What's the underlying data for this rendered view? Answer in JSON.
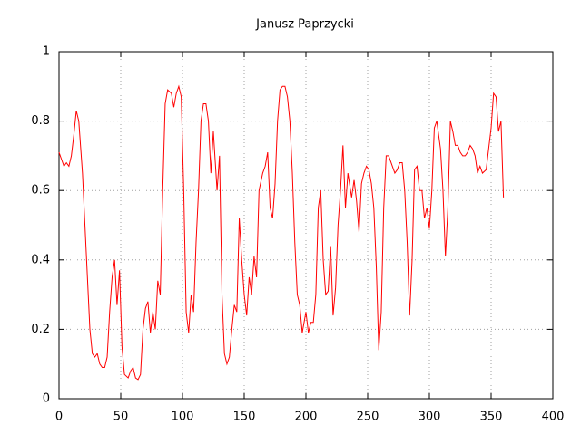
{
  "chart_data": {
    "type": "line",
    "title": "Janusz Paprzycki",
    "x": [
      0,
      2,
      4,
      6,
      8,
      10,
      12,
      14,
      16,
      19,
      21,
      23,
      25,
      27,
      29,
      31,
      33,
      35,
      37,
      39,
      41,
      43,
      45,
      47,
      49,
      51,
      53,
      56,
      58,
      60,
      62,
      64,
      66,
      68,
      70,
      72,
      74,
      76,
      78,
      80,
      82,
      84,
      86,
      88,
      91,
      93,
      95,
      97,
      99,
      101,
      103,
      105,
      107,
      109,
      111,
      113,
      115,
      117,
      119,
      121,
      123,
      125,
      128,
      130,
      132,
      134,
      136,
      138,
      140,
      142,
      144,
      146,
      148,
      150,
      152,
      154,
      156,
      158,
      160,
      162,
      165,
      167,
      169,
      171,
      173,
      175,
      177,
      179,
      181,
      183,
      185,
      187,
      189,
      191,
      193,
      195,
      197,
      200,
      202,
      204,
      206,
      208,
      210,
      212,
      214,
      216,
      218,
      220,
      222,
      224,
      226,
      228,
      230,
      232,
      234,
      237,
      239,
      241,
      243,
      245,
      247,
      249,
      251,
      253,
      255,
      257,
      259,
      261,
      263,
      265,
      267,
      269,
      272,
      274,
      276,
      278,
      280,
      282,
      284,
      286,
      288,
      290,
      292,
      294,
      296,
      298,
      300,
      302,
      304,
      306,
      309,
      311,
      313,
      315,
      317,
      319,
      321,
      323,
      325,
      327,
      329,
      331,
      333,
      335,
      337,
      339,
      341,
      343,
      346,
      348,
      350,
      352,
      354,
      356,
      358,
      360
    ],
    "values": [
      0.71,
      0.69,
      0.67,
      0.68,
      0.67,
      0.7,
      0.76,
      0.83,
      0.8,
      0.65,
      0.5,
      0.35,
      0.2,
      0.13,
      0.12,
      0.13,
      0.1,
      0.09,
      0.09,
      0.12,
      0.25,
      0.35,
      0.4,
      0.27,
      0.37,
      0.15,
      0.07,
      0.06,
      0.08,
      0.09,
      0.06,
      0.055,
      0.07,
      0.2,
      0.26,
      0.28,
      0.19,
      0.25,
      0.2,
      0.34,
      0.3,
      0.6,
      0.85,
      0.89,
      0.88,
      0.84,
      0.88,
      0.9,
      0.87,
      0.6,
      0.25,
      0.19,
      0.3,
      0.25,
      0.45,
      0.6,
      0.8,
      0.85,
      0.85,
      0.8,
      0.65,
      0.77,
      0.6,
      0.7,
      0.3,
      0.13,
      0.1,
      0.12,
      0.2,
      0.27,
      0.25,
      0.52,
      0.4,
      0.3,
      0.24,
      0.35,
      0.3,
      0.41,
      0.35,
      0.6,
      0.65,
      0.67,
      0.71,
      0.55,
      0.52,
      0.62,
      0.8,
      0.89,
      0.9,
      0.9,
      0.87,
      0.8,
      0.65,
      0.45,
      0.3,
      0.27,
      0.19,
      0.25,
      0.19,
      0.22,
      0.22,
      0.3,
      0.55,
      0.6,
      0.4,
      0.3,
      0.31,
      0.44,
      0.24,
      0.32,
      0.5,
      0.6,
      0.73,
      0.55,
      0.65,
      0.58,
      0.63,
      0.57,
      0.48,
      0.62,
      0.65,
      0.67,
      0.66,
      0.62,
      0.55,
      0.38,
      0.14,
      0.25,
      0.55,
      0.7,
      0.7,
      0.68,
      0.65,
      0.66,
      0.68,
      0.68,
      0.6,
      0.45,
      0.24,
      0.4,
      0.66,
      0.67,
      0.6,
      0.6,
      0.52,
      0.55,
      0.49,
      0.6,
      0.78,
      0.8,
      0.72,
      0.6,
      0.41,
      0.55,
      0.8,
      0.77,
      0.73,
      0.73,
      0.71,
      0.7,
      0.7,
      0.71,
      0.73,
      0.72,
      0.7,
      0.65,
      0.67,
      0.65,
      0.66,
      0.72,
      0.78,
      0.88,
      0.87,
      0.77,
      0.8,
      0.58
    ],
    "color": "#ff0000",
    "xlim": [
      0,
      400
    ],
    "xticks": [
      0,
      50,
      100,
      150,
      200,
      250,
      300,
      350,
      400
    ],
    "ylim": [
      0,
      1
    ],
    "yticks": [
      0,
      0.2,
      0.4,
      0.6,
      0.8,
      1
    ],
    "grid": true
  }
}
